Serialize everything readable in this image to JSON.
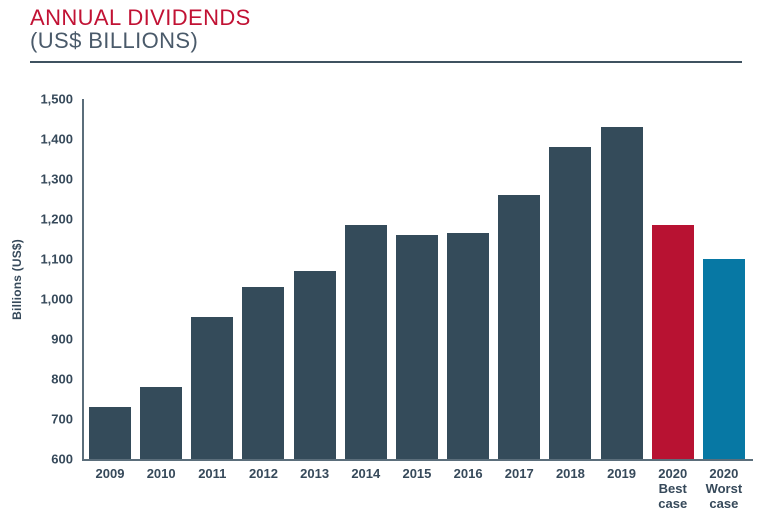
{
  "header": {
    "title": "ANNUAL DIVIDENDS",
    "subtitle": "(US$ BILLIONS)"
  },
  "palette": {
    "title_red": "#c11234",
    "subtitle_slate": "#4a5a6a",
    "axis_line": "#5b6e7b",
    "label_slate": "#36495a",
    "bar_default": "#344b5a",
    "bar_best_case": "#b81232",
    "bar_worst_case": "#0778a4"
  },
  "chart_data": {
    "type": "bar",
    "title": "ANNUAL DIVIDENDS",
    "subtitle": "(US$ BILLIONS)",
    "xlabel": "",
    "ylabel": "Billions (US$)",
    "ylim": [
      600,
      1500
    ],
    "ytick_step": 100,
    "yticks": [
      "1,500",
      "1,400",
      "1,300",
      "1,200",
      "1,100",
      "1,000",
      "900",
      "800",
      "700",
      "600"
    ],
    "grid": false,
    "legend": "none",
    "categories": [
      "2009",
      "2010",
      "2011",
      "2012",
      "2013",
      "2014",
      "2015",
      "2016",
      "2017",
      "2018",
      "2019",
      "2020\nBest\ncase",
      "2020\nWorst\ncase"
    ],
    "values": [
      730,
      780,
      955,
      1030,
      1070,
      1185,
      1160,
      1165,
      1260,
      1380,
      1430,
      1185,
      1100
    ],
    "bar_colors": [
      "#344b5a",
      "#344b5a",
      "#344b5a",
      "#344b5a",
      "#344b5a",
      "#344b5a",
      "#344b5a",
      "#344b5a",
      "#344b5a",
      "#344b5a",
      "#344b5a",
      "#b81232",
      "#0778a4"
    ]
  }
}
